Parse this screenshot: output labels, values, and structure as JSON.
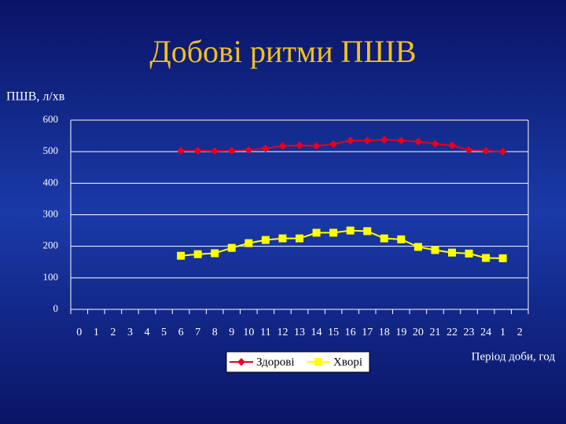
{
  "chart_data": {
    "type": "line",
    "title": "Добові ритми ПШВ",
    "y_label": "ПШВ, л/хв",
    "x_label": "Період доби, год",
    "categories": [
      "0",
      "1",
      "2",
      "3",
      "4",
      "5",
      "6",
      "7",
      "8",
      "9",
      "10",
      "11",
      "12",
      "13",
      "14",
      "15",
      "16",
      "17",
      "18",
      "19",
      "20",
      "21",
      "22",
      "23",
      "24",
      "1",
      "2"
    ],
    "series": [
      {
        "name": "Здорові",
        "color": "#e8001c",
        "marker": "diamond",
        "values": [
          null,
          null,
          null,
          null,
          null,
          null,
          503,
          503,
          502,
          503,
          505,
          510,
          518,
          520,
          518,
          524,
          535,
          535,
          538,
          535,
          532,
          525,
          520,
          505,
          503,
          500,
          null
        ]
      },
      {
        "name": "Хворі",
        "color": "#ffff00",
        "marker": "square",
        "values": [
          null,
          null,
          null,
          null,
          null,
          null,
          170,
          175,
          178,
          195,
          210,
          220,
          225,
          225,
          243,
          243,
          250,
          248,
          225,
          222,
          198,
          188,
          180,
          177,
          163,
          162,
          null
        ]
      }
    ],
    "ylim": [
      0,
      600
    ],
    "yticks": [
      0,
      100,
      200,
      300,
      400,
      500,
      600
    ],
    "grid": true,
    "legend": "bottom"
  }
}
